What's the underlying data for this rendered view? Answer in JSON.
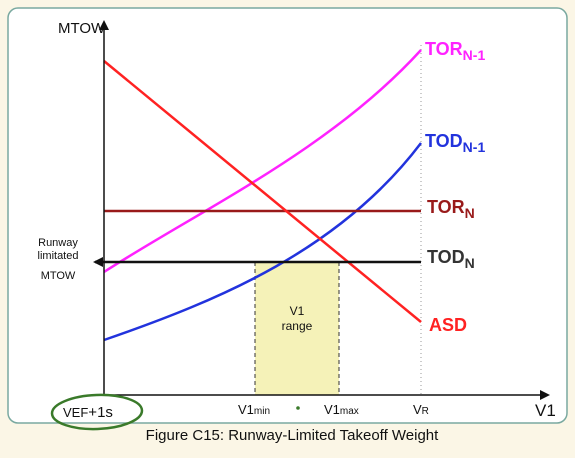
{
  "colors": {
    "page_background": "#fbf6e6",
    "plot_background": "#ffffff",
    "frame": "#7aa9a0",
    "tor_n1": "#ff22ff",
    "tod_n1": "#2233dd",
    "tor_n": "#991a1a",
    "tod_n": "#111111",
    "asd": "#ff2222",
    "v1_range_fill": "#f5f2b8",
    "highlight_circle": "#3a7a2a"
  },
  "axes": {
    "y_label": "MTOW",
    "x_label": "V1"
  },
  "curve_labels": {
    "tor_n1": {
      "main": "TOR",
      "sub": "N-1"
    },
    "tod_n1": {
      "main": "TOD",
      "sub": "N-1"
    },
    "tor_n": {
      "main": "TOR",
      "sub": "N"
    },
    "tod_n": {
      "main": "TOD",
      "sub": "N"
    },
    "asd": {
      "main": "ASD"
    }
  },
  "y_annotation": {
    "line1": "Runway",
    "line2": "limitated",
    "line3": "MTOW"
  },
  "v1_range": {
    "line1": "V1",
    "line2": "range"
  },
  "x_ticks": {
    "vef_main": "VEF",
    "vef_plus": "+",
    "vef_rest": "1s",
    "v1min_main": "V1",
    "v1min_sub": "min",
    "v1max_main": "V1",
    "v1max_sub": "max",
    "vr_main": "V",
    "vr_sub": "R"
  },
  "caption": "Figure C15: Runway-Limited Takeoff Weight"
}
